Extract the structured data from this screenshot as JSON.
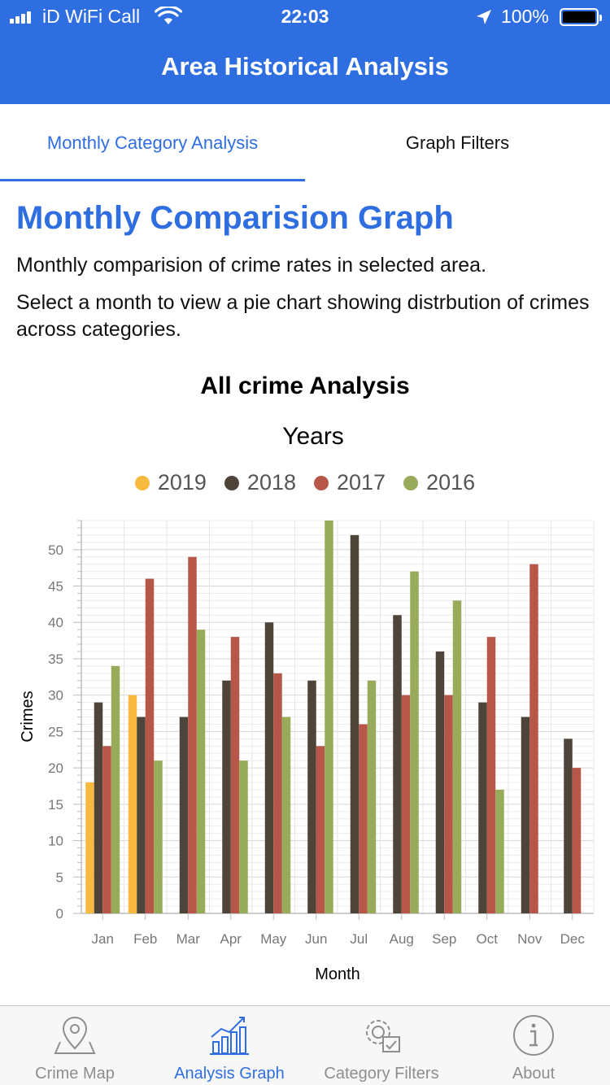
{
  "status_bar": {
    "carrier": "iD WiFi Call",
    "time": "22:03",
    "battery": "100%"
  },
  "header": {
    "title": "Area Historical Analysis"
  },
  "tabs": [
    {
      "label": "Monthly Category Analysis",
      "active": true
    },
    {
      "label": "Graph Filters",
      "active": false
    }
  ],
  "content": {
    "heading": "Monthly Comparision Graph",
    "description1": "Monthly comparision of crime rates in selected area.",
    "description2": "Select a month to view a pie chart showing distrbution of crimes across categories."
  },
  "colors": {
    "accent": "#2f6ee0",
    "2019": "#f7b93e",
    "2018": "#4f4439",
    "2017": "#b6574a",
    "2016": "#97ab5a"
  },
  "chart_data": {
    "type": "bar",
    "title": "All crime Analysis",
    "legend_title": "Years",
    "xlabel": "Month",
    "ylabel": "Crimes",
    "ylim": [
      0,
      54
    ],
    "yticks": [
      0,
      5,
      10,
      15,
      20,
      25,
      30,
      35,
      40,
      45,
      50
    ],
    "grid": true,
    "legend_position": "top",
    "categories": [
      "Jan",
      "Feb",
      "Mar",
      "Apr",
      "May",
      "Jun",
      "Jul",
      "Aug",
      "Sep",
      "Oct",
      "Nov",
      "Dec"
    ],
    "series": [
      {
        "name": "2019",
        "color": "#f7b93e",
        "values": [
          18,
          30,
          null,
          null,
          null,
          null,
          null,
          null,
          null,
          null,
          null,
          null
        ]
      },
      {
        "name": "2018",
        "color": "#4f4439",
        "values": [
          29,
          27,
          27,
          32,
          40,
          32,
          52,
          41,
          36,
          29,
          27,
          24
        ]
      },
      {
        "name": "2017",
        "color": "#b6574a",
        "values": [
          23,
          46,
          49,
          38,
          33,
          23,
          26,
          30,
          30,
          38,
          48,
          20
        ]
      },
      {
        "name": "2016",
        "color": "#97ab5a",
        "values": [
          34,
          21,
          39,
          21,
          27,
          54,
          32,
          47,
          43,
          17,
          null,
          null
        ]
      }
    ]
  },
  "bottom_tabs": [
    {
      "label": "Crime Map",
      "icon": "map-pin-icon",
      "active": false
    },
    {
      "label": "Analysis Graph",
      "icon": "analysis-graph-icon",
      "active": true
    },
    {
      "label": "Category Filters",
      "icon": "gear-filter-icon",
      "active": false
    },
    {
      "label": "About",
      "icon": "info-icon",
      "active": false
    }
  ]
}
